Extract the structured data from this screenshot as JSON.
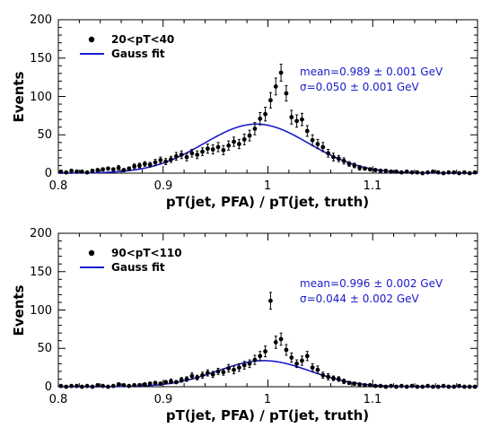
{
  "colors": {
    "fit": "#1a1acc",
    "points": "#000000",
    "annotation": "#1a1acc"
  },
  "chart_data": [
    {
      "type": "scatter",
      "xlabel": "pT(jet, PFA) / pT(jet, truth)",
      "ylabel": "Events",
      "xlim": [
        0.8,
        1.2
      ],
      "ylim": [
        0,
        200
      ],
      "xticks": [
        "0.8",
        "0.9",
        "1",
        "1.1"
      ],
      "yticks": [
        "0",
        "50",
        "100",
        "150",
        "200"
      ],
      "legend": {
        "placement": "top-left",
        "entries": [
          "20<pT<40",
          "Gauss fit"
        ]
      },
      "annotations": [
        "mean=0.989 ± 0.001 GeV",
        "σ=0.050 ± 0.001 GeV"
      ],
      "fit": {
        "name": "Gauss fit",
        "amplitude": 64,
        "mean": 0.989,
        "sigma": 0.05
      },
      "series": [
        {
          "name": "20<pT<40",
          "x": [
            0.8,
            0.805,
            0.81,
            0.815,
            0.82,
            0.825,
            0.83,
            0.835,
            0.84,
            0.845,
            0.85,
            0.855,
            0.86,
            0.865,
            0.87,
            0.875,
            0.88,
            0.885,
            0.89,
            0.895,
            0.9,
            0.905,
            0.91,
            0.915,
            0.92,
            0.925,
            0.93,
            0.935,
            0.94,
            0.945,
            0.95,
            0.955,
            0.96,
            0.965,
            0.97,
            0.975,
            0.98,
            0.985,
            0.99,
            0.995,
            1.0,
            1.005,
            1.01,
            1.015,
            1.02,
            1.025,
            1.03,
            1.035,
            1.04,
            1.045,
            1.05,
            1.055,
            1.06,
            1.065,
            1.07,
            1.075,
            1.08,
            1.085,
            1.09,
            1.095,
            1.1,
            1.105,
            1.11,
            1.115,
            1.12,
            1.125,
            1.13,
            1.135,
            1.14,
            1.145,
            1.15,
            1.155,
            1.16,
            1.165,
            1.17,
            1.175,
            1.18,
            1.185,
            1.19,
            1.195
          ],
          "y": [
            2,
            1,
            3,
            2,
            2,
            1,
            3,
            4,
            5,
            6,
            5,
            7,
            4,
            6,
            9,
            10,
            12,
            11,
            14,
            17,
            15,
            18,
            22,
            24,
            21,
            26,
            24,
            28,
            32,
            31,
            34,
            30,
            36,
            41,
            38,
            44,
            49,
            58,
            71,
            77,
            95,
            113,
            131,
            104,
            73,
            68,
            70,
            55,
            43,
            38,
            34,
            26,
            21,
            19,
            16,
            12,
            10,
            7,
            6,
            5,
            4,
            3,
            3,
            2,
            2,
            1,
            2,
            1,
            1,
            0,
            1,
            2,
            1,
            0,
            1,
            1,
            0,
            1,
            0,
            1
          ],
          "yerr": [
            1,
            1,
            2,
            1,
            1,
            1,
            2,
            2,
            2,
            2,
            2,
            3,
            2,
            2,
            3,
            3,
            3,
            3,
            4,
            4,
            4,
            4,
            5,
            5,
            5,
            5,
            5,
            5,
            6,
            6,
            6,
            6,
            6,
            6,
            6,
            7,
            7,
            8,
            8,
            9,
            10,
            11,
            11,
            10,
            9,
            8,
            8,
            7,
            7,
            6,
            6,
            5,
            5,
            4,
            4,
            3,
            3,
            3,
            2,
            2,
            2,
            2,
            2,
            1,
            1,
            1,
            1,
            1,
            1,
            1,
            1,
            1,
            1,
            1,
            1,
            1,
            1,
            1,
            1,
            1
          ]
        }
      ]
    },
    {
      "type": "scatter",
      "xlabel": "pT(jet, PFA) / pT(jet, truth)",
      "ylabel": "Events",
      "xlim": [
        0.8,
        1.2
      ],
      "ylim": [
        0,
        200
      ],
      "xticks": [
        "0.8",
        "0.9",
        "1",
        "1.1"
      ],
      "yticks": [
        "0",
        "50",
        "100",
        "150",
        "200"
      ],
      "legend": {
        "placement": "top-left",
        "entries": [
          "90<pT<110",
          "Gauss fit"
        ]
      },
      "annotations": [
        "mean=0.996 ± 0.002 GeV",
        "σ=0.044 ± 0.002 GeV"
      ],
      "fit": {
        "name": "Gauss fit",
        "amplitude": 34,
        "mean": 0.996,
        "sigma": 0.044
      },
      "series": [
        {
          "name": "90<pT<110",
          "x": [
            0.8,
            0.805,
            0.81,
            0.815,
            0.82,
            0.825,
            0.83,
            0.835,
            0.84,
            0.845,
            0.85,
            0.855,
            0.86,
            0.865,
            0.87,
            0.875,
            0.88,
            0.885,
            0.89,
            0.895,
            0.9,
            0.905,
            0.91,
            0.915,
            0.92,
            0.925,
            0.93,
            0.935,
            0.94,
            0.945,
            0.95,
            0.955,
            0.96,
            0.965,
            0.97,
            0.975,
            0.98,
            0.985,
            0.99,
            0.995,
            1.0,
            1.005,
            1.01,
            1.015,
            1.02,
            1.025,
            1.03,
            1.035,
            1.04,
            1.045,
            1.05,
            1.055,
            1.06,
            1.065,
            1.07,
            1.075,
            1.08,
            1.085,
            1.09,
            1.095,
            1.1,
            1.105,
            1.11,
            1.115,
            1.12,
            1.125,
            1.13,
            1.135,
            1.14,
            1.145,
            1.15,
            1.155,
            1.16,
            1.165,
            1.17,
            1.175,
            1.18,
            1.185,
            1.19,
            1.195
          ],
          "y": [
            1,
            0,
            1,
            1,
            0,
            1,
            0,
            2,
            1,
            0,
            1,
            3,
            2,
            1,
            2,
            2,
            3,
            4,
            5,
            4,
            6,
            7,
            6,
            9,
            10,
            14,
            12,
            15,
            18,
            16,
            20,
            19,
            24,
            22,
            25,
            28,
            30,
            35,
            40,
            46,
            112,
            58,
            62,
            48,
            38,
            30,
            34,
            40,
            25,
            22,
            15,
            13,
            11,
            10,
            7,
            5,
            4,
            3,
            2,
            2,
            1,
            1,
            0,
            1,
            0,
            1,
            0,
            1,
            0,
            0,
            1,
            0,
            0,
            1,
            0,
            0,
            1,
            0,
            0,
            0
          ],
          "yerr": [
            1,
            0,
            1,
            1,
            0,
            1,
            0,
            1,
            1,
            0,
            1,
            2,
            1,
            1,
            1,
            1,
            2,
            2,
            2,
            2,
            2,
            3,
            2,
            3,
            3,
            4,
            3,
            4,
            4,
            4,
            4,
            4,
            5,
            5,
            5,
            5,
            5,
            6,
            6,
            7,
            11,
            8,
            8,
            7,
            6,
            5,
            6,
            6,
            5,
            5,
            4,
            4,
            3,
            3,
            3,
            2,
            2,
            2,
            1,
            1,
            1,
            1,
            0,
            1,
            0,
            1,
            0,
            1,
            0,
            0,
            1,
            0,
            0,
            1,
            0,
            0,
            1,
            0,
            0,
            0
          ]
        }
      ]
    }
  ]
}
